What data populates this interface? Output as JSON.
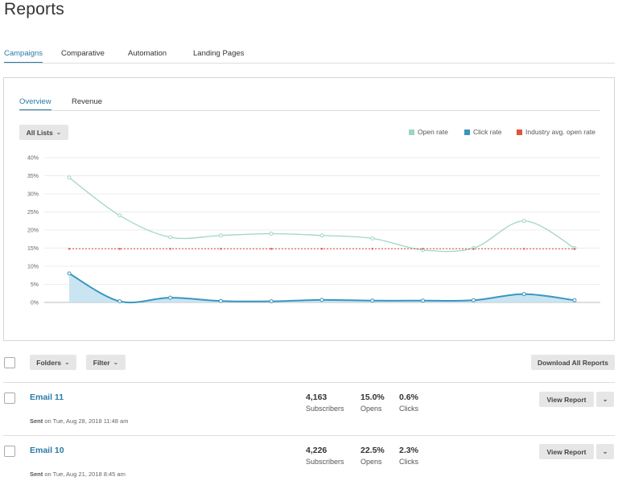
{
  "page": {
    "title": "Reports"
  },
  "tabs": [
    "Campaigns",
    "Comparative",
    "Automation",
    "Landing Pages"
  ],
  "subtabs": [
    "Overview",
    "Revenue"
  ],
  "controls": {
    "all_lists": "All Lists",
    "folders": "Folders",
    "filter": "Filter",
    "download_all": "Download All Reports"
  },
  "legend": [
    {
      "label": "Open rate",
      "color": "#9ed6c6"
    },
    {
      "label": "Click rate",
      "color": "#3a96bf"
    },
    {
      "label": "Industry avg. open rate",
      "color": "#e0553a"
    }
  ],
  "chart_data": {
    "type": "line",
    "x": [
      1,
      2,
      3,
      4,
      5,
      6,
      7,
      8,
      9,
      10,
      11
    ],
    "ylim": [
      0,
      40
    ],
    "yticks": [
      "0%",
      "5%",
      "10%",
      "15%",
      "20%",
      "25%",
      "30%",
      "35%",
      "40%"
    ],
    "grid": true,
    "legend_position": "top-right",
    "series": [
      {
        "name": "Open rate",
        "color": "#9ed6c6",
        "values": [
          34.5,
          24,
          18,
          18.5,
          19,
          18.5,
          17.7,
          14.5,
          15,
          22.5,
          15
        ]
      },
      {
        "name": "Click rate",
        "color": "#3a96bf",
        "values": [
          8,
          0.3,
          1.3,
          0.4,
          0.3,
          0.7,
          0.5,
          0.5,
          0.6,
          2.3,
          0.6
        ]
      },
      {
        "name": "Industry avg. open rate",
        "color": "#e0553a",
        "values": [
          14.8,
          14.8,
          14.8,
          14.8,
          14.8,
          14.8,
          14.8,
          14.8,
          14.8,
          14.8,
          14.8
        ]
      }
    ]
  },
  "emails": [
    {
      "title": "Email 11",
      "sent_prefix": "Sent",
      "sent_rest": "on Tue, Aug 28, 2018 11:48 am",
      "subscribers": "4,163",
      "subscribers_label": "Subscribers",
      "opens": "15.0%",
      "opens_label": "Opens",
      "clicks": "0.6%",
      "clicks_label": "Clicks",
      "button": "View Report"
    },
    {
      "title": "Email 10",
      "sent_prefix": "Sent",
      "sent_rest": "on Tue, Aug 21, 2018 8:45 am",
      "subscribers": "4,226",
      "subscribers_label": "Subscribers",
      "opens": "22.5%",
      "opens_label": "Opens",
      "clicks": "2.3%",
      "clicks_label": "Clicks",
      "button": "View Report"
    }
  ]
}
